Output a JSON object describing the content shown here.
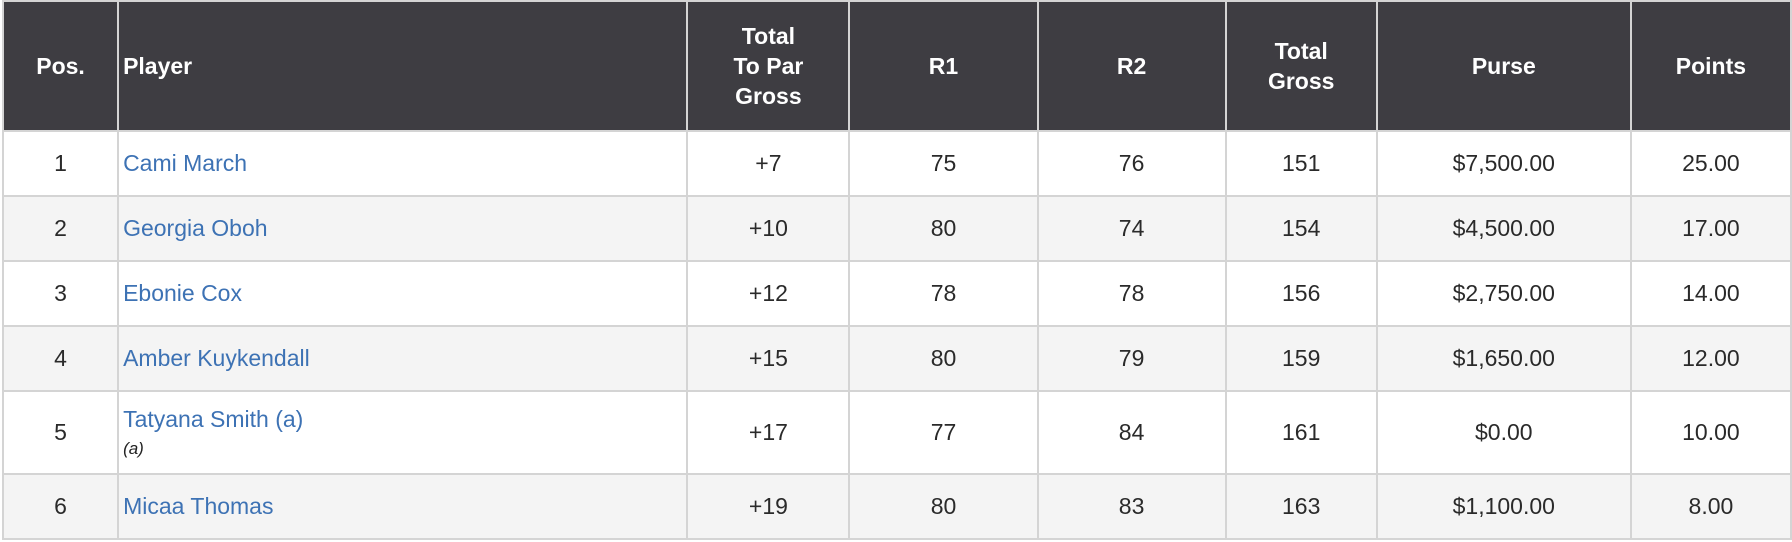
{
  "headers": [
    "Pos.",
    "Player",
    "Total To Par Gross",
    "R1",
    "R2",
    "Total Gross",
    "Purse",
    "Points"
  ],
  "header_lines": {
    "to_par": [
      "Total",
      "To Par",
      "Gross"
    ],
    "total_gross": [
      "Total",
      "Gross"
    ]
  },
  "rows": [
    {
      "pos": "1",
      "player": "Cami March",
      "to_par": "+7",
      "r1": "75",
      "r2": "76",
      "total": "151",
      "purse": "$7,500.00",
      "points": "25.00"
    },
    {
      "pos": "2",
      "player": "Georgia Oboh",
      "to_par": "+10",
      "r1": "80",
      "r2": "74",
      "total": "154",
      "purse": "$4,500.00",
      "points": "17.00"
    },
    {
      "pos": "3",
      "player": "Ebonie Cox",
      "to_par": "+12",
      "r1": "78",
      "r2": "78",
      "total": "156",
      "purse": "$2,750.00",
      "points": "14.00"
    },
    {
      "pos": "4",
      "player": "Amber Kuykendall",
      "to_par": "+15",
      "r1": "80",
      "r2": "79",
      "total": "159",
      "purse": "$1,650.00",
      "points": "12.00"
    },
    {
      "pos": "5",
      "player": "Tatyana Smith (a)",
      "note": "(a)",
      "to_par": "+17",
      "r1": "77",
      "r2": "84",
      "total": "161",
      "purse": "$0.00",
      "points": "10.00"
    },
    {
      "pos": "6",
      "player": "Micaa Thomas",
      "to_par": "+19",
      "r1": "80",
      "r2": "83",
      "total": "163",
      "purse": "$1,100.00",
      "points": "8.00"
    }
  ],
  "colors": {
    "header_bg": "#3e3d42",
    "link": "#3d72b4",
    "alt_row": "#f4f4f4"
  }
}
